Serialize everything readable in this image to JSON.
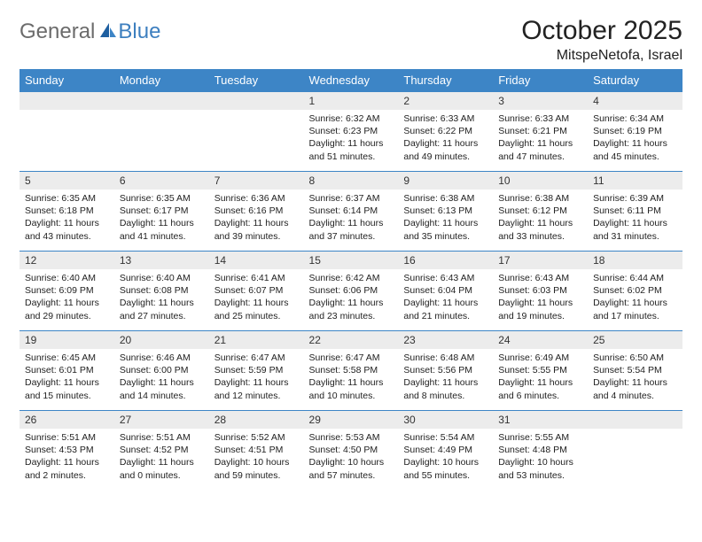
{
  "brand": {
    "part1": "General",
    "part2": "Blue"
  },
  "title": "October 2025",
  "location": "MitspeNetofa, Israel",
  "day_headers": [
    "Sunday",
    "Monday",
    "Tuesday",
    "Wednesday",
    "Thursday",
    "Friday",
    "Saturday"
  ],
  "colors": {
    "header_bg": "#3d85c6",
    "header_text": "#ffffff",
    "daynum_bg": "#ececec",
    "border": "#3d85c6",
    "body_text": "#222222",
    "logo_gray": "#6b6b6b",
    "logo_blue": "#3d7fbf"
  },
  "weeks": [
    [
      {
        "n": "",
        "empty": true
      },
      {
        "n": "",
        "empty": true
      },
      {
        "n": "",
        "empty": true
      },
      {
        "n": "1",
        "sr": "Sunrise: 6:32 AM",
        "ss": "Sunset: 6:23 PM",
        "d1": "Daylight: 11 hours",
        "d2": "and 51 minutes."
      },
      {
        "n": "2",
        "sr": "Sunrise: 6:33 AM",
        "ss": "Sunset: 6:22 PM",
        "d1": "Daylight: 11 hours",
        "d2": "and 49 minutes."
      },
      {
        "n": "3",
        "sr": "Sunrise: 6:33 AM",
        "ss": "Sunset: 6:21 PM",
        "d1": "Daylight: 11 hours",
        "d2": "and 47 minutes."
      },
      {
        "n": "4",
        "sr": "Sunrise: 6:34 AM",
        "ss": "Sunset: 6:19 PM",
        "d1": "Daylight: 11 hours",
        "d2": "and 45 minutes."
      }
    ],
    [
      {
        "n": "5",
        "sr": "Sunrise: 6:35 AM",
        "ss": "Sunset: 6:18 PM",
        "d1": "Daylight: 11 hours",
        "d2": "and 43 minutes."
      },
      {
        "n": "6",
        "sr": "Sunrise: 6:35 AM",
        "ss": "Sunset: 6:17 PM",
        "d1": "Daylight: 11 hours",
        "d2": "and 41 minutes."
      },
      {
        "n": "7",
        "sr": "Sunrise: 6:36 AM",
        "ss": "Sunset: 6:16 PM",
        "d1": "Daylight: 11 hours",
        "d2": "and 39 minutes."
      },
      {
        "n": "8",
        "sr": "Sunrise: 6:37 AM",
        "ss": "Sunset: 6:14 PM",
        "d1": "Daylight: 11 hours",
        "d2": "and 37 minutes."
      },
      {
        "n": "9",
        "sr": "Sunrise: 6:38 AM",
        "ss": "Sunset: 6:13 PM",
        "d1": "Daylight: 11 hours",
        "d2": "and 35 minutes."
      },
      {
        "n": "10",
        "sr": "Sunrise: 6:38 AM",
        "ss": "Sunset: 6:12 PM",
        "d1": "Daylight: 11 hours",
        "d2": "and 33 minutes."
      },
      {
        "n": "11",
        "sr": "Sunrise: 6:39 AM",
        "ss": "Sunset: 6:11 PM",
        "d1": "Daylight: 11 hours",
        "d2": "and 31 minutes."
      }
    ],
    [
      {
        "n": "12",
        "sr": "Sunrise: 6:40 AM",
        "ss": "Sunset: 6:09 PM",
        "d1": "Daylight: 11 hours",
        "d2": "and 29 minutes."
      },
      {
        "n": "13",
        "sr": "Sunrise: 6:40 AM",
        "ss": "Sunset: 6:08 PM",
        "d1": "Daylight: 11 hours",
        "d2": "and 27 minutes."
      },
      {
        "n": "14",
        "sr": "Sunrise: 6:41 AM",
        "ss": "Sunset: 6:07 PM",
        "d1": "Daylight: 11 hours",
        "d2": "and 25 minutes."
      },
      {
        "n": "15",
        "sr": "Sunrise: 6:42 AM",
        "ss": "Sunset: 6:06 PM",
        "d1": "Daylight: 11 hours",
        "d2": "and 23 minutes."
      },
      {
        "n": "16",
        "sr": "Sunrise: 6:43 AM",
        "ss": "Sunset: 6:04 PM",
        "d1": "Daylight: 11 hours",
        "d2": "and 21 minutes."
      },
      {
        "n": "17",
        "sr": "Sunrise: 6:43 AM",
        "ss": "Sunset: 6:03 PM",
        "d1": "Daylight: 11 hours",
        "d2": "and 19 minutes."
      },
      {
        "n": "18",
        "sr": "Sunrise: 6:44 AM",
        "ss": "Sunset: 6:02 PM",
        "d1": "Daylight: 11 hours",
        "d2": "and 17 minutes."
      }
    ],
    [
      {
        "n": "19",
        "sr": "Sunrise: 6:45 AM",
        "ss": "Sunset: 6:01 PM",
        "d1": "Daylight: 11 hours",
        "d2": "and 15 minutes."
      },
      {
        "n": "20",
        "sr": "Sunrise: 6:46 AM",
        "ss": "Sunset: 6:00 PM",
        "d1": "Daylight: 11 hours",
        "d2": "and 14 minutes."
      },
      {
        "n": "21",
        "sr": "Sunrise: 6:47 AM",
        "ss": "Sunset: 5:59 PM",
        "d1": "Daylight: 11 hours",
        "d2": "and 12 minutes."
      },
      {
        "n": "22",
        "sr": "Sunrise: 6:47 AM",
        "ss": "Sunset: 5:58 PM",
        "d1": "Daylight: 11 hours",
        "d2": "and 10 minutes."
      },
      {
        "n": "23",
        "sr": "Sunrise: 6:48 AM",
        "ss": "Sunset: 5:56 PM",
        "d1": "Daylight: 11 hours",
        "d2": "and 8 minutes."
      },
      {
        "n": "24",
        "sr": "Sunrise: 6:49 AM",
        "ss": "Sunset: 5:55 PM",
        "d1": "Daylight: 11 hours",
        "d2": "and 6 minutes."
      },
      {
        "n": "25",
        "sr": "Sunrise: 6:50 AM",
        "ss": "Sunset: 5:54 PM",
        "d1": "Daylight: 11 hours",
        "d2": "and 4 minutes."
      }
    ],
    [
      {
        "n": "26",
        "sr": "Sunrise: 5:51 AM",
        "ss": "Sunset: 4:53 PM",
        "d1": "Daylight: 11 hours",
        "d2": "and 2 minutes."
      },
      {
        "n": "27",
        "sr": "Sunrise: 5:51 AM",
        "ss": "Sunset: 4:52 PM",
        "d1": "Daylight: 11 hours",
        "d2": "and 0 minutes."
      },
      {
        "n": "28",
        "sr": "Sunrise: 5:52 AM",
        "ss": "Sunset: 4:51 PM",
        "d1": "Daylight: 10 hours",
        "d2": "and 59 minutes."
      },
      {
        "n": "29",
        "sr": "Sunrise: 5:53 AM",
        "ss": "Sunset: 4:50 PM",
        "d1": "Daylight: 10 hours",
        "d2": "and 57 minutes."
      },
      {
        "n": "30",
        "sr": "Sunrise: 5:54 AM",
        "ss": "Sunset: 4:49 PM",
        "d1": "Daylight: 10 hours",
        "d2": "and 55 minutes."
      },
      {
        "n": "31",
        "sr": "Sunrise: 5:55 AM",
        "ss": "Sunset: 4:48 PM",
        "d1": "Daylight: 10 hours",
        "d2": "and 53 minutes."
      },
      {
        "n": "",
        "empty": true
      }
    ]
  ]
}
